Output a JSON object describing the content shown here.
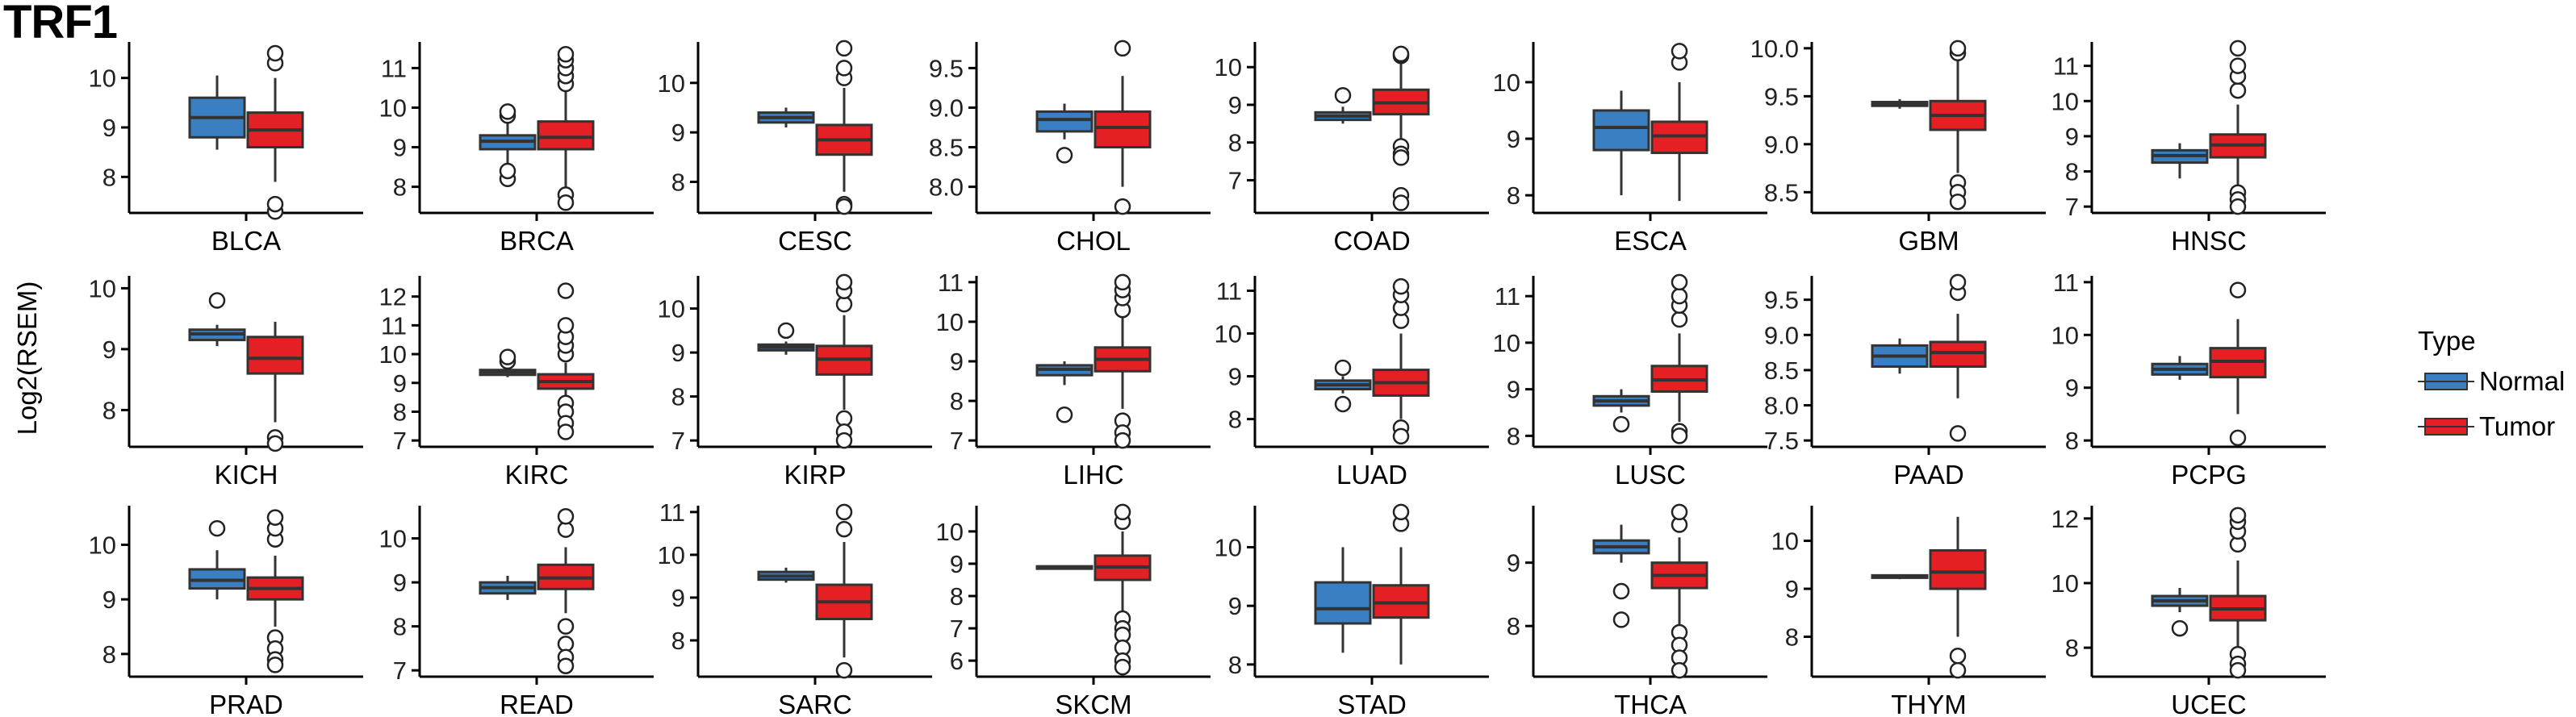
{
  "title": "TRF1",
  "colors": {
    "normal": "#3a7fc1",
    "tumor": "#e42025",
    "line": "#333333"
  },
  "chart_data": {
    "type": "box",
    "ylabel": "Log2(RSEM)",
    "legend": {
      "title": "Type",
      "placement": "right",
      "entries": [
        {
          "name": "Normal",
          "color": "#3a7fc1"
        },
        {
          "name": "Tumor",
          "color": "#e42025"
        }
      ]
    },
    "panels": [
      {
        "name": "BLCA",
        "ylim": [
          7.4,
          10.6
        ],
        "ticks": [
          8,
          9,
          10
        ],
        "normal": {
          "whislo": 8.55,
          "q1": 8.8,
          "med": 9.2,
          "q3": 9.6,
          "whishi": 10.05,
          "fliers": []
        },
        "tumor": {
          "whislo": 7.9,
          "q1": 8.6,
          "med": 8.95,
          "q3": 9.3,
          "whishi": 10.0,
          "fliers": [
            10.3,
            10.5,
            7.3,
            7.45
          ]
        }
      },
      {
        "name": "BRCA",
        "ylim": [
          7.5,
          11.5
        ],
        "ticks": [
          8,
          9,
          10,
          11
        ],
        "normal": {
          "whislo": 8.6,
          "q1": 8.95,
          "med": 9.15,
          "q3": 9.3,
          "whishi": 9.7,
          "fliers": [
            8.2,
            8.4,
            9.8,
            9.9
          ]
        },
        "tumor": {
          "whislo": 8.0,
          "q1": 8.95,
          "med": 9.25,
          "q3": 9.65,
          "whishi": 10.4,
          "fliers": [
            10.6,
            10.8,
            11.0,
            11.2,
            11.35,
            7.8,
            7.6
          ]
        }
      },
      {
        "name": "CESC",
        "ylim": [
          7.5,
          10.7
        ],
        "ticks": [
          8,
          9,
          10
        ],
        "normal": {
          "whislo": 9.1,
          "q1": 9.2,
          "med": 9.3,
          "q3": 9.4,
          "whishi": 9.5,
          "fliers": []
        },
        "tumor": {
          "whislo": 7.8,
          "q1": 8.55,
          "med": 8.85,
          "q3": 9.15,
          "whishi": 9.9,
          "fliers": [
            10.1,
            10.3,
            10.7,
            7.55,
            7.5
          ]
        }
      },
      {
        "name": "CHOL",
        "ylim": [
          7.75,
          9.75
        ],
        "ticks": [
          8.0,
          8.5,
          9.0,
          9.5
        ],
        "normal": {
          "whislo": 8.6,
          "q1": 8.7,
          "med": 8.85,
          "q3": 8.95,
          "whishi": 9.05,
          "fliers": [
            8.4
          ]
        },
        "tumor": {
          "whislo": 8.0,
          "q1": 8.5,
          "med": 8.75,
          "q3": 8.95,
          "whishi": 9.4,
          "fliers": [
            9.75,
            7.75
          ]
        }
      },
      {
        "name": "COAD",
        "ylim": [
          6.3,
          10.5
        ],
        "ticks": [
          7,
          8,
          9,
          10
        ],
        "normal": {
          "whislo": 8.5,
          "q1": 8.6,
          "med": 8.7,
          "q3": 8.8,
          "whishi": 8.95,
          "fliers": [
            9.25
          ]
        },
        "tumor": {
          "whislo": 8.1,
          "q1": 8.75,
          "med": 9.05,
          "q3": 9.4,
          "whishi": 10.1,
          "fliers": [
            10.3,
            10.35,
            7.9,
            7.7,
            7.6,
            6.6,
            6.4
          ]
        }
      },
      {
        "name": "ESCA",
        "ylim": [
          7.8,
          10.6
        ],
        "ticks": [
          8,
          9,
          10
        ],
        "normal": {
          "whislo": 8.0,
          "q1": 8.8,
          "med": 9.2,
          "q3": 9.5,
          "whishi": 9.85,
          "fliers": []
        },
        "tumor": {
          "whislo": 7.9,
          "q1": 8.75,
          "med": 9.05,
          "q3": 9.3,
          "whishi": 10.0,
          "fliers": [
            10.35,
            10.55
          ]
        }
      },
      {
        "name": "GBM",
        "ylim": [
          8.35,
          10.0
        ],
        "ticks": [
          8.5,
          9.0,
          9.5,
          10.0
        ],
        "normal": {
          "whislo": 9.37,
          "q1": 9.4,
          "med": 9.42,
          "q3": 9.44,
          "whishi": 9.47,
          "fliers": []
        },
        "tumor": {
          "whislo": 8.7,
          "q1": 9.15,
          "med": 9.3,
          "q3": 9.45,
          "whishi": 9.9,
          "fliers": [
            9.95,
            10.0,
            8.6,
            8.5,
            8.4
          ]
        }
      },
      {
        "name": "HNSC",
        "ylim": [
          7.0,
          11.5
        ],
        "ticks": [
          7,
          8,
          9,
          10,
          11
        ],
        "normal": {
          "whislo": 7.8,
          "q1": 8.25,
          "med": 8.45,
          "q3": 8.6,
          "whishi": 8.8,
          "fliers": []
        },
        "tumor": {
          "whislo": 7.6,
          "q1": 8.4,
          "med": 8.75,
          "q3": 9.05,
          "whishi": 9.9,
          "fliers": [
            10.3,
            10.7,
            11.0,
            11.5,
            7.4,
            7.2,
            7.0
          ]
        }
      },
      {
        "name": "KICH",
        "ylim": [
          7.5,
          10.1
        ],
        "ticks": [
          8,
          9,
          10
        ],
        "normal": {
          "whislo": 9.05,
          "q1": 9.15,
          "med": 9.25,
          "q3": 9.32,
          "whishi": 9.4,
          "fliers": [
            9.8
          ]
        },
        "tumor": {
          "whislo": 7.8,
          "q1": 8.6,
          "med": 8.85,
          "q3": 9.2,
          "whishi": 9.45,
          "fliers": [
            7.55,
            7.45
          ]
        }
      },
      {
        "name": "KIRC",
        "ylim": [
          7.0,
          12.5
        ],
        "ticks": [
          7,
          8,
          9,
          10,
          11,
          12
        ],
        "normal": {
          "whislo": 9.2,
          "q1": 9.28,
          "med": 9.38,
          "q3": 9.45,
          "whishi": 9.55,
          "fliers": [
            9.75,
            9.9
          ]
        },
        "tumor": {
          "whislo": 8.5,
          "q1": 8.8,
          "med": 9.05,
          "q3": 9.3,
          "whishi": 9.7,
          "fliers": [
            10.0,
            10.3,
            10.6,
            11.0,
            12.2,
            8.3,
            8.0,
            7.6,
            7.3
          ]
        }
      },
      {
        "name": "KIRP",
        "ylim": [
          7.0,
          10.6
        ],
        "ticks": [
          7,
          8,
          9,
          10
        ],
        "normal": {
          "whislo": 8.95,
          "q1": 9.05,
          "med": 9.12,
          "q3": 9.18,
          "whishi": 9.25,
          "fliers": [
            9.5
          ]
        },
        "tumor": {
          "whislo": 7.7,
          "q1": 8.5,
          "med": 8.85,
          "q3": 9.15,
          "whishi": 9.85,
          "fliers": [
            10.1,
            10.4,
            10.6,
            7.5,
            7.2,
            7.0
          ]
        }
      },
      {
        "name": "LIHC",
        "ylim": [
          7.0,
          11.0
        ],
        "ticks": [
          7,
          8,
          9,
          10,
          11
        ],
        "normal": {
          "whislo": 8.4,
          "q1": 8.65,
          "med": 8.8,
          "q3": 8.9,
          "whishi": 9.0,
          "fliers": [
            7.65
          ]
        },
        "tumor": {
          "whislo": 7.8,
          "q1": 8.75,
          "med": 9.05,
          "q3": 9.35,
          "whishi": 10.1,
          "fliers": [
            10.3,
            10.6,
            10.8,
            11.0,
            7.5,
            7.2,
            7.0
          ]
        }
      },
      {
        "name": "LUAD",
        "ylim": [
          7.5,
          11.2
        ],
        "ticks": [
          8,
          9,
          10,
          11
        ],
        "normal": {
          "whislo": 8.6,
          "q1": 8.7,
          "med": 8.8,
          "q3": 8.9,
          "whishi": 9.0,
          "fliers": [
            9.2,
            8.35
          ]
        },
        "tumor": {
          "whislo": 8.0,
          "q1": 8.55,
          "med": 8.85,
          "q3": 9.15,
          "whishi": 10.0,
          "fliers": [
            10.3,
            10.6,
            10.9,
            11.1,
            7.8,
            7.6
          ]
        }
      },
      {
        "name": "LUSC",
        "ylim": [
          7.9,
          11.3
        ],
        "ticks": [
          8,
          9,
          10,
          11
        ],
        "normal": {
          "whislo": 8.5,
          "q1": 8.65,
          "med": 8.75,
          "q3": 8.85,
          "whishi": 9.0,
          "fliers": [
            8.25
          ]
        },
        "tumor": {
          "whislo": 8.3,
          "q1": 8.95,
          "med": 9.2,
          "q3": 9.5,
          "whishi": 10.2,
          "fliers": [
            10.5,
            10.8,
            11.0,
            11.3,
            8.1,
            8.0
          ]
        }
      },
      {
        "name": "PAAD",
        "ylim": [
          7.5,
          9.75
        ],
        "ticks": [
          7.5,
          8.0,
          8.5,
          9.0,
          9.5
        ],
        "normal": {
          "whislo": 8.45,
          "q1": 8.55,
          "med": 8.7,
          "q3": 8.85,
          "whishi": 8.95,
          "fliers": []
        },
        "tumor": {
          "whislo": 8.1,
          "q1": 8.55,
          "med": 8.75,
          "q3": 8.9,
          "whishi": 9.3,
          "fliers": [
            9.6,
            9.75,
            7.6
          ]
        }
      },
      {
        "name": "PCPG",
        "ylim": [
          8.0,
          11.0
        ],
        "ticks": [
          8,
          9,
          10,
          11
        ],
        "normal": {
          "whislo": 9.15,
          "q1": 9.25,
          "med": 9.35,
          "q3": 9.45,
          "whishi": 9.6,
          "fliers": []
        },
        "tumor": {
          "whislo": 8.5,
          "q1": 9.2,
          "med": 9.5,
          "q3": 9.75,
          "whishi": 10.3,
          "fliers": [
            10.85,
            8.05
          ]
        }
      },
      {
        "name": "PRAD",
        "ylim": [
          7.7,
          10.6
        ],
        "ticks": [
          8,
          9,
          10
        ],
        "normal": {
          "whislo": 9.0,
          "q1": 9.2,
          "med": 9.35,
          "q3": 9.55,
          "whishi": 9.9,
          "fliers": [
            10.3
          ]
        },
        "tumor": {
          "whislo": 8.5,
          "q1": 9.0,
          "med": 9.2,
          "q3": 9.4,
          "whishi": 9.8,
          "fliers": [
            10.1,
            10.3,
            10.5,
            8.3,
            8.1,
            7.9,
            7.8
          ]
        }
      },
      {
        "name": "READ",
        "ylim": [
          7.0,
          10.6
        ],
        "ticks": [
          7,
          8,
          9,
          10
        ],
        "normal": {
          "whislo": 8.6,
          "q1": 8.75,
          "med": 8.88,
          "q3": 9.0,
          "whishi": 9.15,
          "fliers": []
        },
        "tumor": {
          "whislo": 8.3,
          "q1": 8.85,
          "med": 9.1,
          "q3": 9.4,
          "whishi": 9.8,
          "fliers": [
            10.2,
            10.5,
            8.0,
            7.6,
            7.3,
            7.1
          ]
        }
      },
      {
        "name": "SARC",
        "ylim": [
          7.3,
          11.0
        ],
        "ticks": [
          8,
          9,
          10,
          11
        ],
        "normal": {
          "whislo": 9.35,
          "q1": 9.42,
          "med": 9.5,
          "q3": 9.6,
          "whishi": 9.7,
          "fliers": []
        },
        "tumor": {
          "whislo": 7.6,
          "q1": 8.5,
          "med": 8.9,
          "q3": 9.3,
          "whishi": 10.3,
          "fliers": [
            10.6,
            11.0,
            7.3
          ]
        }
      },
      {
        "name": "SKCM",
        "ylim": [
          5.7,
          10.6
        ],
        "ticks": [
          6,
          7,
          8,
          9,
          10
        ],
        "normal": {
          "whislo": 8.85,
          "q1": 8.88,
          "med": 8.9,
          "q3": 8.92,
          "whishi": 8.95,
          "fliers": []
        },
        "tumor": {
          "whislo": 7.5,
          "q1": 8.5,
          "med": 8.9,
          "q3": 9.25,
          "whishi": 10.0,
          "fliers": [
            10.3,
            10.6,
            7.3,
            7.0,
            6.8,
            6.4,
            6.0,
            5.8
          ]
        }
      },
      {
        "name": "STAD",
        "ylim": [
          7.9,
          10.6
        ],
        "ticks": [
          8,
          9,
          10
        ],
        "normal": {
          "whislo": 8.2,
          "q1": 8.7,
          "med": 8.95,
          "q3": 9.4,
          "whishi": 10.0,
          "fliers": []
        },
        "tumor": {
          "whislo": 8.0,
          "q1": 8.8,
          "med": 9.05,
          "q3": 9.35,
          "whishi": 10.0,
          "fliers": [
            10.4,
            10.6
          ]
        }
      },
      {
        "name": "THCA",
        "ylim": [
          7.3,
          9.8
        ],
        "ticks": [
          8,
          9
        ],
        "normal": {
          "whislo": 9.0,
          "q1": 9.15,
          "med": 9.25,
          "q3": 9.35,
          "whishi": 9.6,
          "fliers": [
            8.55,
            8.1
          ]
        },
        "tumor": {
          "whislo": 8.0,
          "q1": 8.6,
          "med": 8.8,
          "q3": 9.0,
          "whishi": 9.4,
          "fliers": [
            9.6,
            9.8,
            7.9,
            7.7,
            7.5,
            7.3
          ]
        }
      },
      {
        "name": "THYM",
        "ylim": [
          7.3,
          10.6
        ],
        "ticks": [
          8,
          9,
          10
        ],
        "normal": {
          "whislo": 9.2,
          "q1": 9.23,
          "med": 9.25,
          "q3": 9.28,
          "whishi": 9.3,
          "fliers": []
        },
        "tumor": {
          "whislo": 8.0,
          "q1": 9.0,
          "med": 9.35,
          "q3": 9.8,
          "whishi": 10.5,
          "fliers": [
            7.6,
            7.3
          ]
        }
      },
      {
        "name": "UCEC",
        "ylim": [
          7.3,
          12.2
        ],
        "ticks": [
          8,
          10,
          12
        ],
        "normal": {
          "whislo": 9.1,
          "q1": 9.3,
          "med": 9.45,
          "q3": 9.6,
          "whishi": 9.85,
          "fliers": [
            8.6
          ]
        },
        "tumor": {
          "whislo": 8.0,
          "q1": 8.85,
          "med": 9.2,
          "q3": 9.6,
          "whishi": 10.7,
          "fliers": [
            11.2,
            11.6,
            11.9,
            12.1,
            7.8,
            7.5,
            7.3
          ]
        }
      }
    ]
  }
}
